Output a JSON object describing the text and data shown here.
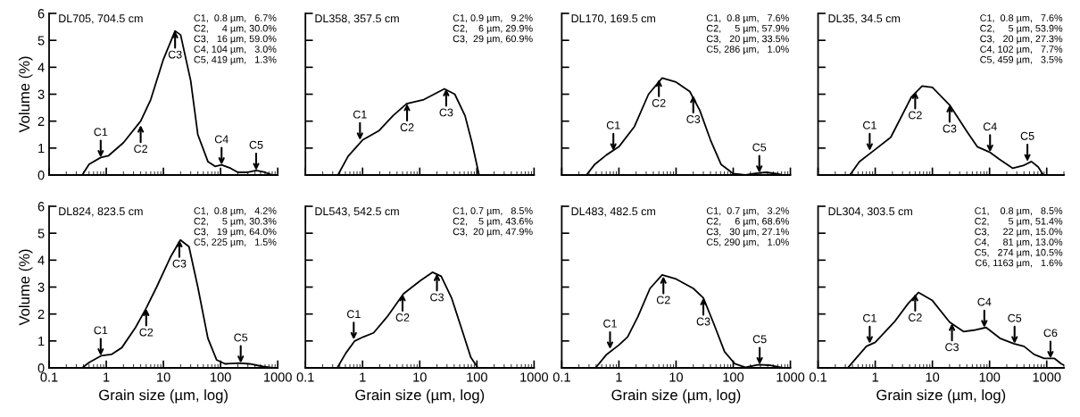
{
  "chart_data": [
    {
      "type": "line",
      "title": "DL705, 704.5 cm",
      "ylabel": "Volume (%)",
      "tick_labels": "y",
      "log": "x",
      "grid": false,
      "xlim": [
        0.1,
        1000
      ],
      "ylim": [
        0,
        6
      ],
      "xticks": [
        0.1,
        1,
        10,
        100,
        1000
      ],
      "yticks": [
        0,
        1,
        2,
        3,
        4,
        5,
        6
      ],
      "x": [
        0.38,
        0.5,
        0.8,
        1.1,
        2,
        4,
        6,
        10,
        16,
        20,
        30,
        40,
        60,
        80,
        104,
        150,
        200,
        300,
        419,
        600,
        800
      ],
      "series": [
        {
          "color": "#000000",
          "values": [
            0,
            0.4,
            0.65,
            0.72,
            1.2,
            2.0,
            2.8,
            4.3,
            5.35,
            5.2,
            3.5,
            1.5,
            0.5,
            0.32,
            0.38,
            0.25,
            0.1,
            0.1,
            0.17,
            0.1,
            0
          ]
        }
      ],
      "annotations": [
        "C1,  0.8 µm,   6.7%\nC2,     4 µm, 30.0%\nC3,   16 µm, 59.0%\nC4, 104 µm,   3.0%\nC5, 419 µm,   1.3%",
        {
          "text": "C1",
          "x": 0.8,
          "y": 0.65
        },
        {
          "text": "C2",
          "x": 4,
          "y": 1.85
        },
        {
          "text": "C3",
          "x": 16,
          "y": 5.35
        },
        {
          "text": "C4",
          "x": 104,
          "y": 0.38
        },
        {
          "text": "C5",
          "x": 419,
          "y": 0.17
        }
      ]
    },
    {
      "type": "line",
      "title": "DL358, 357.5 cm",
      "tick_labels": false,
      "log": "x",
      "grid": false,
      "xlim": [
        0.1,
        1000
      ],
      "ylim": [
        0,
        6
      ],
      "xticks": [
        0.1,
        1,
        10,
        100,
        1000
      ],
      "yticks": [
        0,
        1,
        2,
        3,
        4,
        5,
        6
      ],
      "x": [
        0.37,
        0.56,
        1.0,
        1.95,
        3.4,
        5.9,
        11.8,
        27,
        41,
        62,
        82,
        109
      ],
      "series": [
        {
          "color": "#000000",
          "values": [
            0,
            0.7,
            1.3,
            1.65,
            2.2,
            2.65,
            2.8,
            3.2,
            3.0,
            2.2,
            1.2,
            0
          ]
        }
      ],
      "annotations": [
        "C1, 0.9 µm,   9.2%\nC2,    6 µm, 29.9%\nC3,  29 µm, 60.9%",
        {
          "text": "C1",
          "x": 0.9,
          "y": 1.3
        },
        {
          "text": "C2",
          "x": 6,
          "y": 2.65
        },
        {
          "text": "C3",
          "x": 29,
          "y": 3.2
        }
      ]
    },
    {
      "type": "line",
      "title": "DL170, 169.5 cm",
      "tick_labels": false,
      "log": "x",
      "grid": false,
      "xlim": [
        0.1,
        1000
      ],
      "ylim": [
        0,
        6
      ],
      "xticks": [
        0.1,
        1,
        10,
        100,
        1000
      ],
      "yticks": [
        0,
        1,
        2,
        3,
        4,
        5,
        6
      ],
      "x": [
        0.27,
        0.38,
        0.61,
        1,
        1.87,
        3.3,
        5.7,
        10,
        17.4,
        26,
        40,
        61,
        100,
        163,
        247,
        375,
        560,
        740
      ],
      "series": [
        {
          "color": "#000000",
          "values": [
            0,
            0.4,
            0.75,
            1.05,
            1.8,
            3.0,
            3.6,
            3.45,
            3.1,
            2.4,
            1.3,
            0.4,
            0.05,
            0,
            0.06,
            0.1,
            0.05,
            0
          ]
        }
      ],
      "annotations": [
        "C1,  0.8 µm,   7.6%\nC2,     5 µm, 57.9%\nC3,   20 µm, 33.5%\nC5, 286 µm,   1.0%",
        {
          "text": "C1",
          "x": 0.8,
          "y": 0.9
        },
        {
          "text": "C2",
          "x": 5,
          "y": 3.55
        },
        {
          "text": "C3",
          "x": 20,
          "y": 2.95
        },
        {
          "text": "C5",
          "x": 286,
          "y": 0.08
        }
      ]
    },
    {
      "type": "line",
      "title": "DL35, 34.5 cm",
      "tick_labels": false,
      "log": "x",
      "grid": false,
      "xlim": [
        0.1,
        2000
      ],
      "ylim": [
        0,
        6
      ],
      "xticks": [
        0.1,
        1,
        10,
        100,
        1000
      ],
      "yticks": [
        0,
        1,
        2,
        3,
        4,
        5,
        6
      ],
      "x": [
        0.36,
        0.53,
        1,
        1.87,
        4.3,
        6.6,
        10,
        20,
        40.6,
        61,
        100,
        146,
        255,
        388,
        540,
        710,
        870
      ],
      "series": [
        {
          "color": "#000000",
          "values": [
            0,
            0.5,
            0.95,
            1.4,
            2.9,
            3.3,
            3.25,
            2.6,
            1.6,
            1.05,
            0.85,
            0.6,
            0.25,
            0.35,
            0.5,
            0.3,
            0
          ]
        }
      ],
      "annotations": [
        "C1,  0.8 µm,   7.6%\nC2,     5 µm, 53.9%\nC3,   20 µm, 27.3%\nC4, 102 µm,   7.7%\nC5, 459 µm,   3.5%",
        {
          "text": "C1",
          "x": 0.8,
          "y": 0.9
        },
        {
          "text": "C2",
          "x": 5,
          "y": 3.1
        },
        {
          "text": "C3",
          "x": 20,
          "y": 2.6
        },
        {
          "text": "C4",
          "x": 102,
          "y": 0.85
        },
        {
          "text": "C5",
          "x": 459,
          "y": 0.5
        }
      ]
    },
    {
      "type": "line",
      "title": "DL824, 823.5 cm",
      "xlabel": "Grain size (µm, log)",
      "ylabel": "Volume (%)",
      "log": "x",
      "grid": false,
      "xlim": [
        0.1,
        1000
      ],
      "ylim": [
        0,
        6
      ],
      "xticks": [
        0.1,
        1,
        10,
        100,
        1000
      ],
      "yticks": [
        0,
        1,
        2,
        3,
        4,
        5,
        6
      ],
      "x": [
        0.38,
        0.5,
        0.81,
        1.23,
        1.87,
        3.25,
        4.95,
        7.6,
        13.2,
        19.8,
        28,
        40,
        60,
        85,
        120,
        210,
        320,
        555,
        840
      ],
      "series": [
        {
          "color": "#000000",
          "values": [
            0,
            0.2,
            0.45,
            0.5,
            0.75,
            1.5,
            2.2,
            3.0,
            4.1,
            4.75,
            4.5,
            3.0,
            1.1,
            0.3,
            0.15,
            0.18,
            0.15,
            0.05,
            0
          ]
        }
      ],
      "annotations": [
        "C1,  0.8 µm,   4.2%\nC2,     5 µm, 30.3%\nC3,   19 µm, 64.0%\nC5, 225 µm,   1.5%",
        {
          "text": "C1",
          "x": 0.8,
          "y": 0.45
        },
        {
          "text": "C2",
          "x": 5,
          "y": 2.2
        },
        {
          "text": "C3",
          "x": 19,
          "y": 4.75
        },
        {
          "text": "C5",
          "x": 225,
          "y": 0.18
        }
      ]
    },
    {
      "type": "line",
      "title": "DL543, 542.5 cm",
      "xlabel": "Grain size (µm, log)",
      "tick_labels": "x",
      "log": "x",
      "grid": false,
      "xlim": [
        0.1,
        1000
      ],
      "ylim": [
        0,
        6
      ],
      "xticks": [
        0.1,
        1,
        10,
        100,
        1000
      ],
      "yticks": [
        0,
        1,
        2,
        3,
        4,
        5,
        6
      ],
      "x": [
        0.36,
        0.51,
        0.73,
        1.03,
        1.56,
        2.7,
        5.2,
        10.4,
        16.7,
        23.7,
        36,
        55,
        78,
        104
      ],
      "series": [
        {
          "color": "#000000",
          "values": [
            0,
            0.55,
            1.0,
            1.15,
            1.3,
            1.9,
            2.75,
            3.25,
            3.55,
            3.4,
            2.6,
            1.4,
            0.4,
            0
          ]
        }
      ],
      "annotations": [
        "C1, 0.7 µm,   8.5%\nC2,    5 µm, 43.6%\nC3,  20 µm, 47.9%",
        {
          "text": "C1",
          "x": 0.7,
          "y": 1.05
        },
        {
          "text": "C2",
          "x": 5,
          "y": 2.75
        },
        {
          "text": "C3",
          "x": 20,
          "y": 3.5
        }
      ]
    },
    {
      "type": "line",
      "title": "DL483, 482.5 cm",
      "xlabel": "Grain size (µm, log)",
      "tick_labels": "x",
      "log": "x",
      "grid": false,
      "xlim": [
        0.1,
        1000
      ],
      "ylim": [
        0,
        6
      ],
      "xticks": [
        0.1,
        1,
        10,
        100,
        1000
      ],
      "yticks": [
        0,
        1,
        2,
        3,
        4,
        5,
        6
      ],
      "x": [
        0.39,
        0.61,
        1,
        1.42,
        2.15,
        3.5,
        5.7,
        10,
        20,
        30,
        46.5,
        70.5,
        107,
        163,
        280,
        427,
        750
      ],
      "series": [
        {
          "color": "#000000",
          "values": [
            0,
            0.5,
            0.85,
            1.15,
            1.9,
            2.95,
            3.45,
            3.3,
            2.95,
            2.6,
            1.6,
            0.6,
            0.15,
            0.02,
            0.12,
            0.1,
            0
          ]
        }
      ],
      "annotations": [
        "C1,  0.7 µm,   3.2%\nC2,     6 µm, 68.6%\nC3,   30 µm, 27.1%\nC5, 290 µm,   1.0%",
        {
          "text": "C1",
          "x": 0.7,
          "y": 0.7
        },
        {
          "text": "C2",
          "x": 6,
          "y": 3.4
        },
        {
          "text": "C3",
          "x": 30,
          "y": 2.6
        },
        {
          "text": "C5",
          "x": 290,
          "y": 0.12
        }
      ]
    },
    {
      "type": "line",
      "title": "DL304, 303.5 cm",
      "xlabel": "Grain size (µm, log)",
      "tick_labels": "x",
      "log": "x",
      "grid": false,
      "xlim": [
        0.1,
        2000
      ],
      "ylim": [
        0,
        6
      ],
      "xticks": [
        0.1,
        1,
        10,
        100,
        1000
      ],
      "yticks": [
        0,
        1,
        2,
        3,
        4,
        5,
        6
      ],
      "x": [
        0.33,
        0.46,
        0.7,
        1,
        2.15,
        3.8,
        5.7,
        10,
        20,
        35,
        53,
        87,
        152,
        265,
        400,
        600,
        900,
        1370,
        1800,
        2000
      ],
      "series": [
        {
          "color": "#000000",
          "values": [
            0,
            0.35,
            0.8,
            0.95,
            1.7,
            2.4,
            2.8,
            2.5,
            1.7,
            1.35,
            1.4,
            1.5,
            1.1,
            0.9,
            0.8,
            0.5,
            0.35,
            0.35,
            0.15,
            0.1
          ]
        }
      ],
      "annotations": [
        "C1,    0.8 µm,   8.5%\nC2,       5 µm, 51.4%\nC3,     22 µm, 15.0%\nC4,     81 µm, 13.0%\nC5,   274 µm, 10.5%\nC6, 1163 µm,   1.6%",
        {
          "text": "C1",
          "x": 0.8,
          "y": 0.9
        },
        {
          "text": "C2",
          "x": 5,
          "y": 2.75
        },
        {
          "text": "C3",
          "x": 22,
          "y": 1.65
        },
        {
          "text": "C4",
          "x": 81,
          "y": 1.5
        },
        {
          "text": "C5",
          "x": 274,
          "y": 0.9
        },
        {
          "text": "C6",
          "x": 1163,
          "y": 0.35
        }
      ]
    }
  ]
}
